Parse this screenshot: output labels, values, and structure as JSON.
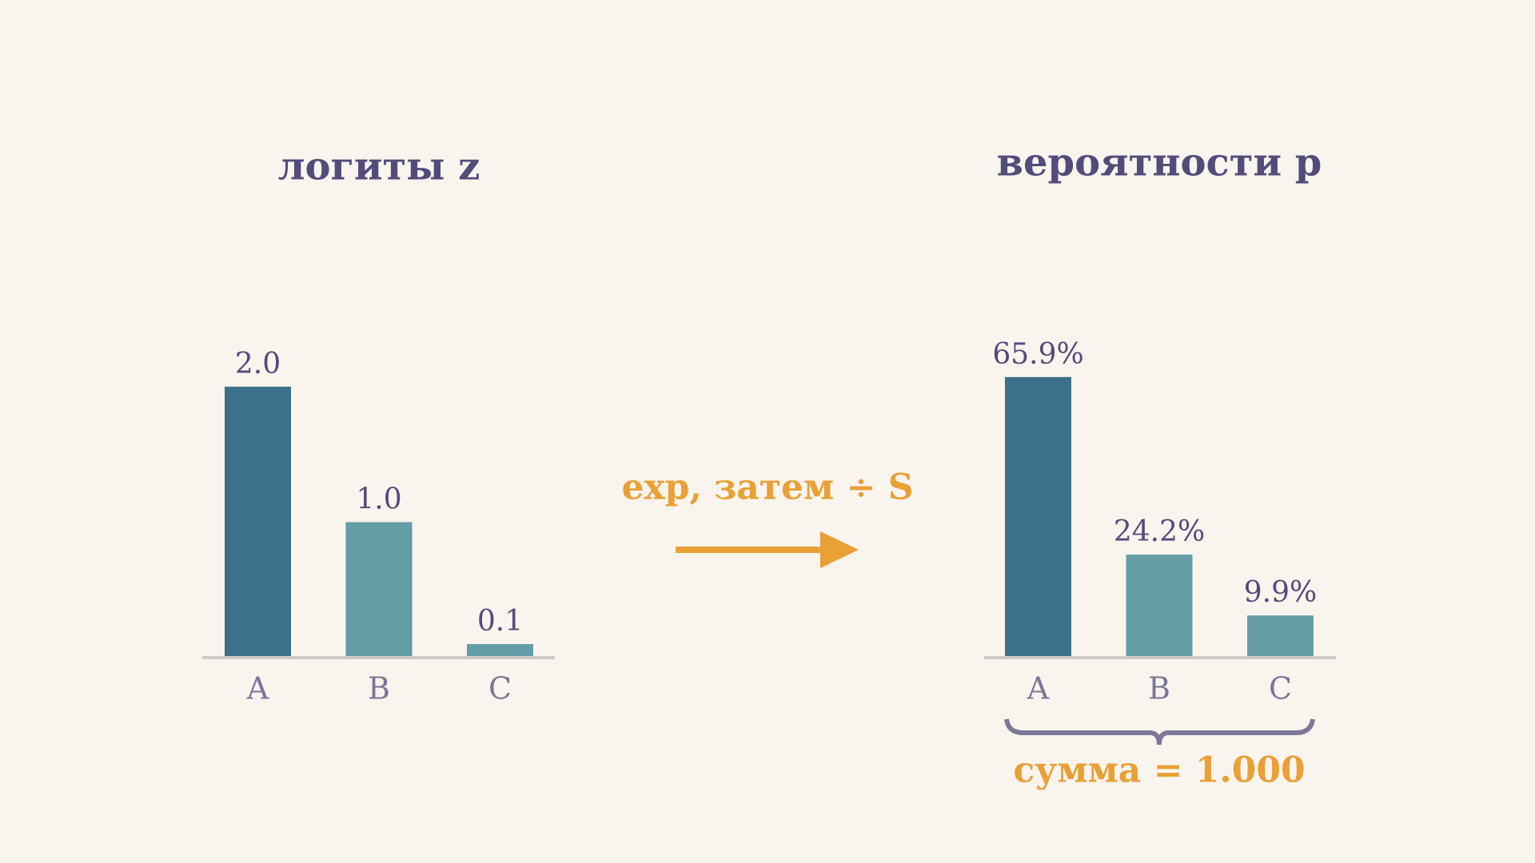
{
  "chart_data": [
    {
      "type": "bar",
      "title": "логиты z",
      "categories": [
        "A",
        "B",
        "C"
      ],
      "values": [
        2.0,
        1.0,
        0.1
      ],
      "value_labels": [
        "2.0",
        "1.0",
        "0.1"
      ],
      "colors": [
        "#3b7189",
        "#649da6",
        "#649da6"
      ],
      "ylim": [
        0,
        2.2
      ]
    },
    {
      "type": "bar",
      "title": "вероятности p",
      "categories": [
        "A",
        "B",
        "C"
      ],
      "values": [
        65.9,
        24.2,
        9.9
      ],
      "value_labels": [
        "65.9%",
        "24.2%",
        "9.9%"
      ],
      "colors": [
        "#3b7189",
        "#649da6",
        "#649da6"
      ],
      "ylim": [
        0,
        70
      ]
    }
  ],
  "annotations": [
    "exp, затем ÷ S",
    "сумма = 1.000"
  ]
}
